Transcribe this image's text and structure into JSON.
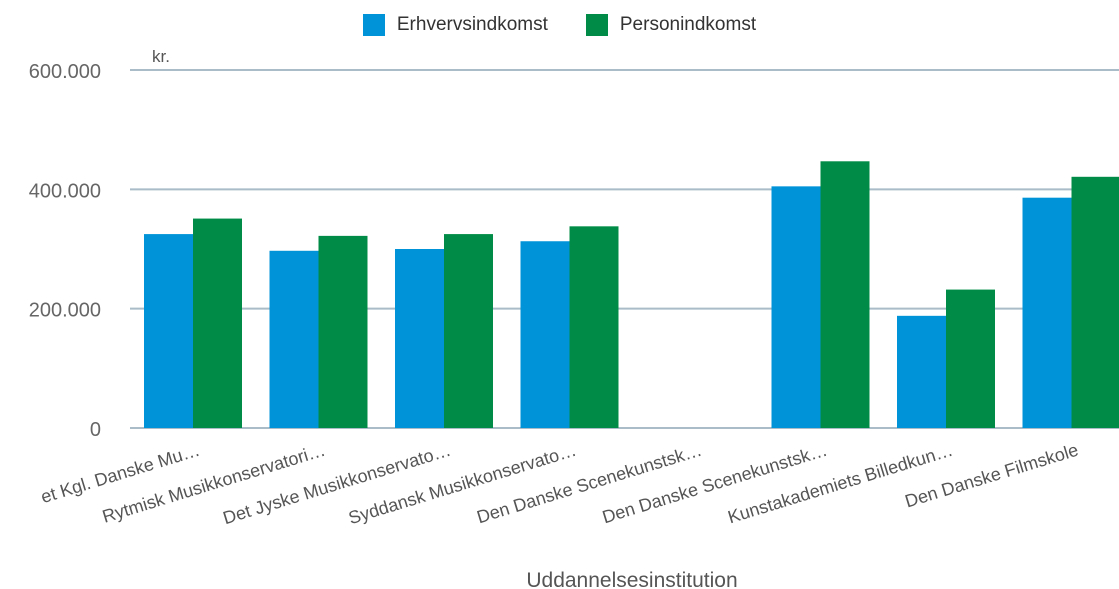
{
  "chart_data": {
    "type": "bar",
    "unit_label": "kr.",
    "xlabel": "Uddannelsesinstitution",
    "ylabel": "",
    "ylim": [
      0,
      600000
    ],
    "yticks": [
      0,
      200000,
      400000,
      600000
    ],
    "ytick_labels": [
      "0",
      "200.000",
      "400.000",
      "600.000"
    ],
    "grid": true,
    "legend_position": "top-center",
    "categories": [
      "et Kgl. Danske Mu…",
      "Rytmisk Musikkonservatori…",
      "Det Jyske Musikkonservato…",
      "Syddansk Musikkonservato…",
      "Den Danske Scenekunstsk…",
      "Den Danske Scenekunstsk…",
      "Kunstakademiets Billedkun…",
      "Den Danske Filmskole"
    ],
    "series": [
      {
        "name": "Erhvervsindkomst",
        "color": "#0093d8",
        "values": [
          325000,
          297000,
          300000,
          313000,
          null,
          405000,
          188000,
          386000
        ]
      },
      {
        "name": "Personindkomst",
        "color": "#008c46",
        "values": [
          351000,
          322000,
          325000,
          338000,
          null,
          447000,
          232000,
          421000
        ]
      }
    ]
  }
}
